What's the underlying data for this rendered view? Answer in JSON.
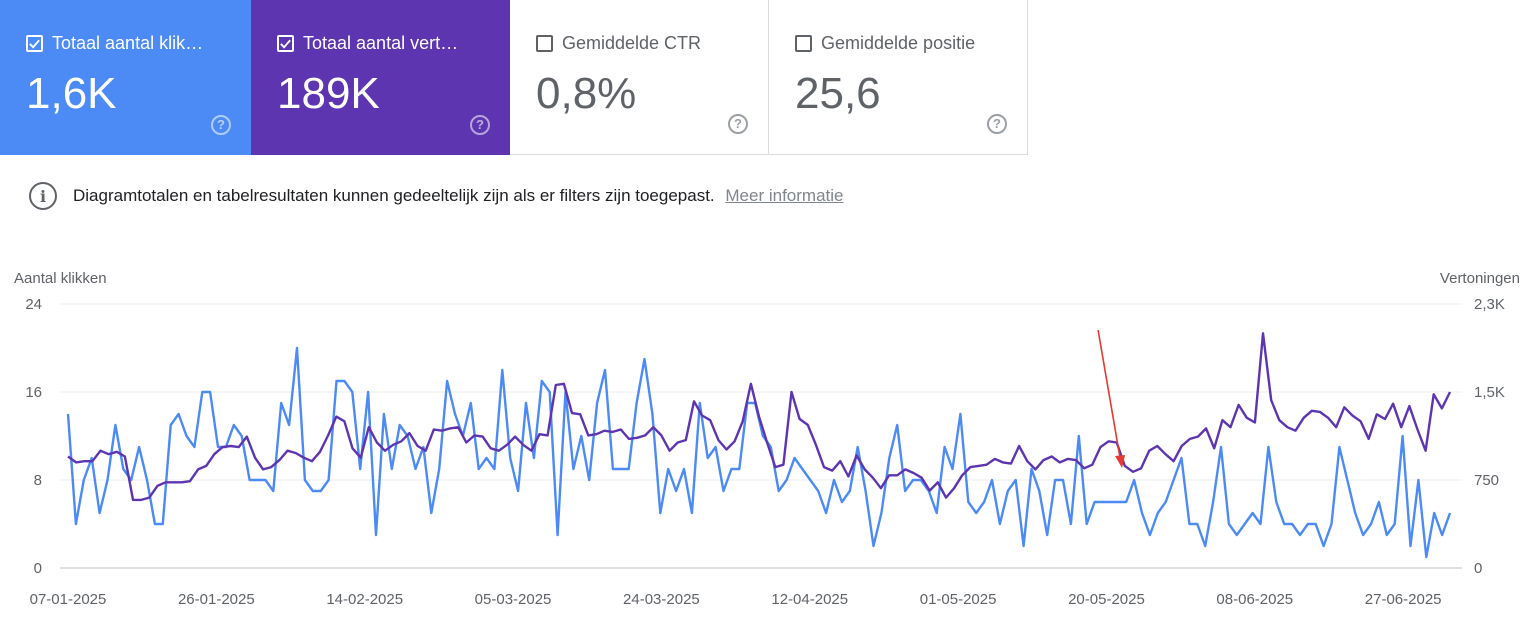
{
  "cards": [
    {
      "label": "Totaal aantal klik…",
      "value": "1,6K",
      "checked": true,
      "color": "#4c8bf5"
    },
    {
      "label": "Totaal aantal vert…",
      "value": "189K",
      "checked": true,
      "color": "#5e35b1"
    },
    {
      "label": "Gemiddelde CTR",
      "value": "0,8%",
      "checked": false
    },
    {
      "label": "Gemiddelde positie",
      "value": "25,6",
      "checked": false
    }
  ],
  "help_glyph": "?",
  "info": {
    "icon": "i",
    "text": "Diagramtotalen en tabelresultaten kunnen gedeeltelijk zijn als er filters zijn toegepast.",
    "link": "Meer informatie"
  },
  "chart_data": {
    "type": "line",
    "ylabel_left": "Aantal klikken",
    "ylabel_right": "Vertoningen",
    "yticks_left": [
      "0",
      "8",
      "16",
      "24"
    ],
    "yticks_right": [
      "0",
      "750",
      "1,5K",
      "2,3K"
    ],
    "ylim_left": [
      0,
      24
    ],
    "ylim_right": [
      0,
      2250
    ],
    "xticks": [
      "07-01-2025",
      "26-01-2025",
      "14-02-2025",
      "05-03-2025",
      "24-03-2025",
      "12-04-2025",
      "01-05-2025",
      "20-05-2025",
      "08-06-2025",
      "27-06-2025"
    ],
    "x_start": "07-01-2025",
    "x_end": "03-07-2025",
    "grid": true,
    "annotation": "arrow",
    "annotation_date": "22-05-2025",
    "annotation_color": "#e53935",
    "series": [
      {
        "axis": "left",
        "color": "#4c8bf5",
        "values": [
          14,
          4,
          8,
          10,
          5,
          8,
          13,
          9,
          8,
          11,
          8,
          4,
          4,
          13,
          14,
          12,
          11,
          16,
          16,
          11,
          11,
          13,
          12,
          8,
          8,
          8,
          7,
          15,
          13,
          20,
          8,
          7,
          7,
          8,
          17,
          17,
          16,
          9,
          16,
          3,
          14,
          9,
          13,
          12,
          9,
          11,
          5,
          9,
          17,
          14,
          12,
          15,
          9,
          10,
          9,
          18,
          10,
          7,
          15,
          10,
          17,
          16,
          3,
          16,
          9,
          12,
          8,
          15,
          18,
          9,
          9,
          9,
          15,
          19,
          14,
          5,
          9,
          7,
          9,
          5,
          15,
          10,
          11,
          7,
          9,
          9,
          15,
          15,
          12,
          11,
          7,
          8,
          10,
          9,
          8,
          7,
          5,
          8,
          6,
          7,
          11,
          7,
          2,
          5,
          10,
          13,
          7,
          8,
          8,
          7,
          5,
          11,
          9,
          14,
          6,
          5,
          6,
          8,
          4,
          7,
          8,
          2,
          9,
          7,
          3,
          8,
          8,
          4,
          12,
          4,
          6,
          6,
          6,
          6,
          6,
          8,
          5,
          3,
          5,
          6,
          8,
          10,
          4,
          4,
          2,
          6,
          11,
          4,
          3,
          4,
          5,
          4,
          11,
          6,
          4,
          4,
          3,
          4,
          4,
          2,
          4,
          11,
          8,
          5,
          3,
          4,
          6,
          3,
          4,
          12,
          2,
          8,
          1,
          5,
          3,
          5
        ],
        "name": ""
      },
      {
        "axis": "right",
        "color": "#5e35b1",
        "values": [
          950,
          900,
          910,
          910,
          1000,
          970,
          990,
          950,
          580,
          580,
          600,
          700,
          730,
          730,
          730,
          740,
          840,
          870,
          970,
          1030,
          1040,
          1030,
          1120,
          940,
          840,
          860,
          920,
          1000,
          980,
          940,
          910,
          990,
          1130,
          1290,
          1250,
          1020,
          940,
          1200,
          1070,
          1000,
          1050,
          1080,
          1150,
          1040,
          1000,
          1180,
          1170,
          1190,
          1200,
          1070,
          1130,
          1120,
          1020,
          1000,
          1050,
          1120,
          1050,
          1000,
          1140,
          1130,
          1560,
          1570,
          1320,
          1310,
          1130,
          1140,
          1170,
          1160,
          1180,
          1100,
          1110,
          1130,
          1200,
          1130,
          1000,
          1070,
          1090,
          1420,
          1300,
          1260,
          1090,
          1010,
          1080,
          1250,
          1570,
          1290,
          1070,
          860,
          880,
          1500,
          1270,
          1220,
          1050,
          860,
          830,
          910,
          780,
          960,
          840,
          770,
          680,
          790,
          790,
          840,
          810,
          770,
          660,
          730,
          600,
          680,
          790,
          860,
          870,
          880,
          930,
          900,
          890,
          1040,
          910,
          840,
          920,
          950,
          900,
          930,
          920,
          850,
          880,
          1030,
          1080,
          1070,
          870,
          820,
          850,
          1000,
          1040,
          970,
          910,
          1040,
          1100,
          1120,
          1190,
          1020,
          1260,
          1200,
          1390,
          1280,
          1240,
          2000,
          1430,
          1260,
          1200,
          1170,
          1280,
          1340,
          1330,
          1280,
          1200,
          1370,
          1300,
          1250,
          1100,
          1310,
          1270,
          1400,
          1200,
          1380,
          1180,
          1000,
          1480,
          1360,
          1500
        ]
      }
    ]
  }
}
